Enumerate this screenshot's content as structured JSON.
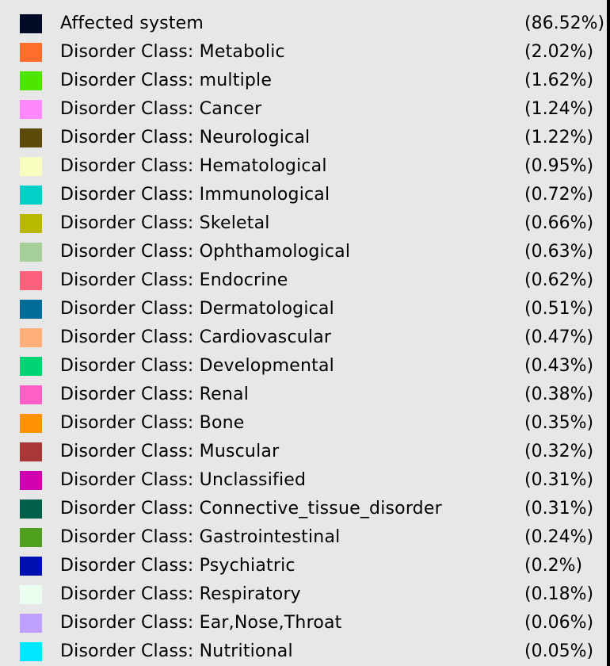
{
  "legend": {
    "items": [
      {
        "label": "Affected system",
        "percent": "(86.52%)",
        "color": "#020a26"
      },
      {
        "label": "Disorder Class: Metabolic",
        "percent": "(2.02%)",
        "color": "#ff6e2a"
      },
      {
        "label": "Disorder Class: multiple",
        "percent": "(1.62%)",
        "color": "#4ee500"
      },
      {
        "label": "Disorder Class: Cancer",
        "percent": "(1.24%)",
        "color": "#ff88ff"
      },
      {
        "label": "Disorder Class: Neurological",
        "percent": "(1.22%)",
        "color": "#5c4a08"
      },
      {
        "label": "Disorder Class: Hematological",
        "percent": "(0.95%)",
        "color": "#f9fdbd"
      },
      {
        "label": "Disorder Class: Immunological",
        "percent": "(0.72%)",
        "color": "#00d0c8"
      },
      {
        "label": "Disorder Class: Skeletal",
        "percent": "(0.66%)",
        "color": "#b8b800"
      },
      {
        "label": "Disorder Class: Ophthamological",
        "percent": "(0.63%)",
        "color": "#a6ce99"
      },
      {
        "label": "Disorder Class: Endocrine",
        "percent": "(0.62%)",
        "color": "#ff607c"
      },
      {
        "label": "Disorder Class: Dermatological",
        "percent": "(0.51%)",
        "color": "#006c98"
      },
      {
        "label": "Disorder Class: Cardiovascular",
        "percent": "(0.47%)",
        "color": "#ffb07a"
      },
      {
        "label": "Disorder Class: Developmental",
        "percent": "(0.43%)",
        "color": "#00d474"
      },
      {
        "label": "Disorder Class: Renal",
        "percent": "(0.38%)",
        "color": "#ff60c6"
      },
      {
        "label": "Disorder Class: Bone",
        "percent": "(0.35%)",
        "color": "#ff9200"
      },
      {
        "label": "Disorder Class: Muscular",
        "percent": "(0.32%)",
        "color": "#a83838"
      },
      {
        "label": "Disorder Class: Unclassified",
        "percent": "(0.31%)",
        "color": "#d000b0"
      },
      {
        "label": "Disorder Class: Connective_tissue_disorder",
        "percent": "(0.31%)",
        "color": "#00604a"
      },
      {
        "label": "Disorder Class: Gastrointestinal",
        "percent": "(0.24%)",
        "color": "#50a020"
      },
      {
        "label": "Disorder Class: Psychiatric",
        "percent": "(0.2%)",
        "color": "#0010b0"
      },
      {
        "label": "Disorder Class: Respiratory",
        "percent": "(0.18%)",
        "color": "#eafff0"
      },
      {
        "label": "Disorder Class: Ear,Nose,Throat",
        "percent": "(0.06%)",
        "color": "#bfa0ff"
      },
      {
        "label": "Disorder Class: Nutritional",
        "percent": "(0.05%)",
        "color": "#00e8ff"
      }
    ]
  }
}
